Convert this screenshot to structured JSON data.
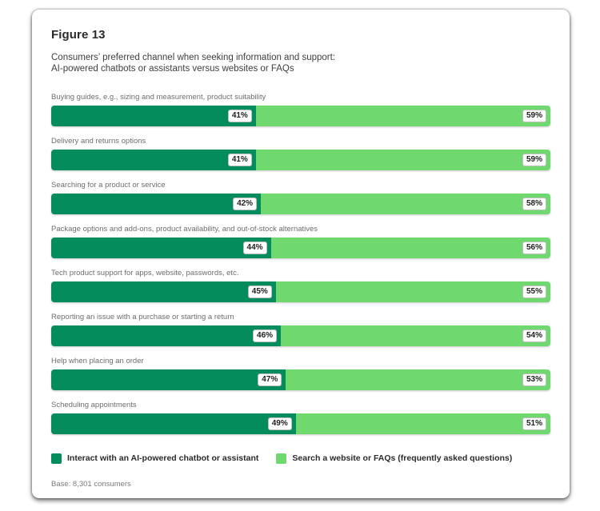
{
  "figure": {
    "title": "Figure 13",
    "subtitle_line1": "Consumers’ preferred channel when seeking information and support:",
    "subtitle_line2": "AI-powered chatbots or assistants versus websites or FAQs",
    "base_note": "Base: 8,301 consumers"
  },
  "colors": {
    "chatbot": "#048C5C",
    "website": "#6FD96F"
  },
  "legend": [
    {
      "label": "Interact with an AI-powered chatbot or assistant",
      "color_key": "chatbot"
    },
    {
      "label": "Search a website or FAQs (frequently asked questions)",
      "color_key": "website"
    }
  ],
  "chart_data": {
    "type": "bar",
    "orientation": "horizontal-stacked",
    "title": "Consumers’ preferred channel when seeking information and support: AI-powered chatbots or assistants versus websites or FAQs",
    "value_format": "percent",
    "xlim": [
      0,
      100
    ],
    "grid": false,
    "legend_position": "bottom",
    "categories": [
      "Buying guides, e.g., sizing and measurement, product suitability",
      "Delivery and returns options",
      "Searching for a product or service",
      "Package options and add-ons, product availability, and out-of-stock alternatives",
      "Tech product support for apps, website, passwords, etc.",
      "Reporting an issue with a purchase or starting a return",
      "Help when placing an order",
      "Scheduling appointments"
    ],
    "series": [
      {
        "name": "Interact with an AI-powered chatbot or assistant",
        "color_key": "chatbot",
        "values": [
          41,
          41,
          42,
          44,
          45,
          46,
          47,
          49
        ]
      },
      {
        "name": "Search a website or FAQs (frequently asked questions)",
        "color_key": "website",
        "values": [
          59,
          59,
          58,
          56,
          55,
          54,
          53,
          51
        ]
      }
    ]
  }
}
